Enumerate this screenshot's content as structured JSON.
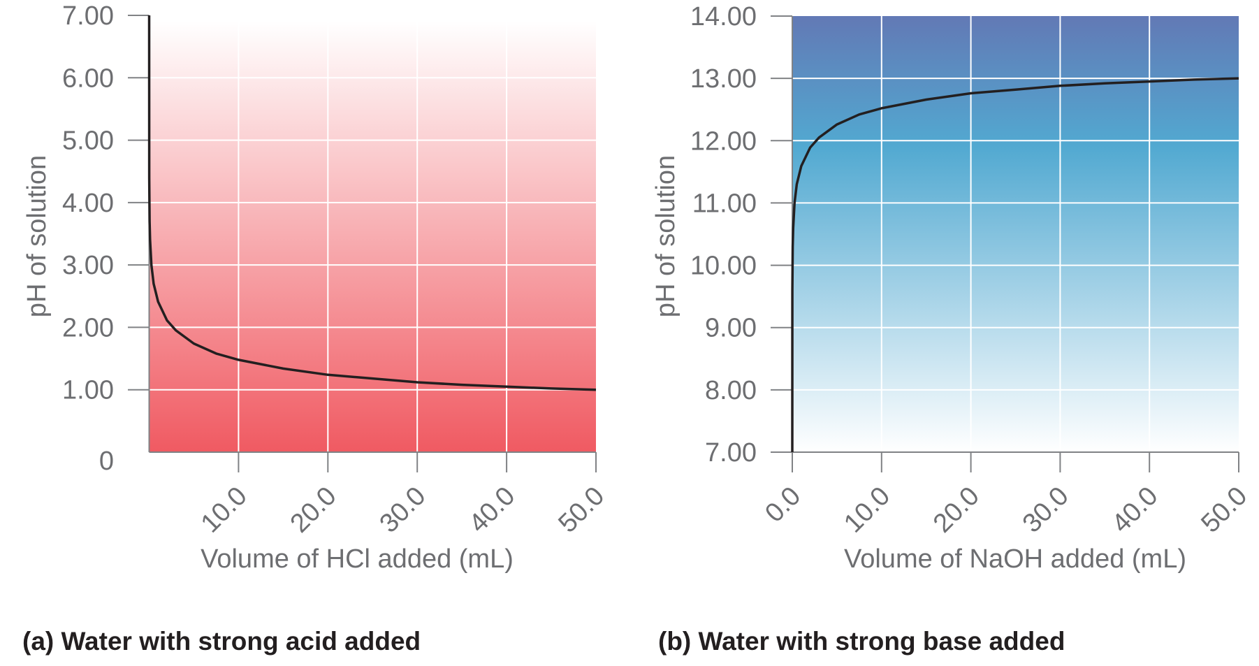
{
  "chart_data": [
    {
      "type": "line",
      "caption": "(a) Water with strong acid added",
      "xlabel": "Volume of HCl added (mL)",
      "ylabel": "pH of solution",
      "xlim": [
        0,
        50
      ],
      "ylim": [
        0,
        7
      ],
      "xticks": [
        10,
        20,
        30,
        40,
        50
      ],
      "xtick_labels": [
        "10.0",
        "20.0",
        "30.0",
        "40.0",
        "50.0"
      ],
      "yticks": [
        0,
        1,
        2,
        3,
        4,
        5,
        6,
        7
      ],
      "ytick_labels": [
        "0",
        "1.00",
        "2.00",
        "3.00",
        "4.00",
        "5.00",
        "6.00",
        "7.00"
      ],
      "grid": true,
      "background_gradient": [
        "#ffffff",
        "#f05a62"
      ],
      "line_color": "#231f20",
      "x": [
        0,
        0.01,
        0.05,
        0.1,
        0.25,
        0.5,
        1,
        2,
        3,
        5,
        7.5,
        10,
        15,
        20,
        25,
        30,
        35,
        40,
        45,
        50
      ],
      "y": [
        7.0,
        4.4,
        3.7,
        3.4,
        3.0,
        2.7,
        2.41,
        2.11,
        1.95,
        1.74,
        1.58,
        1.48,
        1.34,
        1.24,
        1.18,
        1.12,
        1.08,
        1.05,
        1.02,
        1.0
      ]
    },
    {
      "type": "line",
      "caption": "(b) Water with strong base added",
      "xlabel": "Volume of NaOH added (mL)",
      "ylabel": "pH of solution",
      "xlim": [
        0,
        50
      ],
      "ylim": [
        7,
        14
      ],
      "xticks": [
        0,
        10,
        20,
        30,
        40,
        50
      ],
      "xtick_labels": [
        "0.0",
        "10.0",
        "20.0",
        "30.0",
        "40.0",
        "50.0"
      ],
      "yticks": [
        7,
        8,
        9,
        10,
        11,
        12,
        13,
        14
      ],
      "ytick_labels": [
        "7.00",
        "8.00",
        "9.00",
        "10.00",
        "11.00",
        "12.00",
        "13.00",
        "14.00"
      ],
      "grid": true,
      "background_gradient": [
        "#6279b5",
        "#52a9d1",
        "#ffffff"
      ],
      "line_color": "#231f20",
      "x": [
        0,
        0.01,
        0.05,
        0.1,
        0.25,
        0.5,
        1,
        2,
        3,
        5,
        7.5,
        10,
        15,
        20,
        25,
        30,
        35,
        40,
        45,
        50
      ],
      "y": [
        7.0,
        9.6,
        10.3,
        10.6,
        11.0,
        11.3,
        11.59,
        11.89,
        12.05,
        12.26,
        12.42,
        12.52,
        12.66,
        12.76,
        12.82,
        12.88,
        12.92,
        12.95,
        12.98,
        13.0
      ]
    }
  ]
}
